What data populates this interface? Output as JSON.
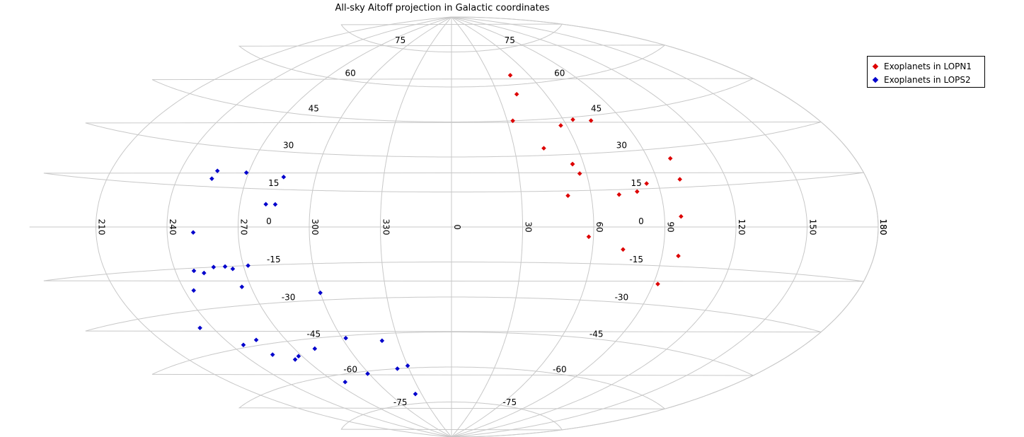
{
  "chart_data": {
    "type": "scatter",
    "projection": "aitoff",
    "coordinate_system": "galactic",
    "title": "All-sky Aitoff projection in Galactic coordinates",
    "grid": true,
    "legend_position": "top-right",
    "longitude_ticks": [
      180,
      210,
      240,
      270,
      300,
      330,
      0,
      30,
      60,
      90,
      120,
      150,
      180
    ],
    "latitude_labels": [
      75,
      60,
      45,
      30,
      15,
      0,
      -15,
      -30,
      -45,
      -60,
      -75
    ],
    "series": [
      {
        "name": "Exoplanets in LOPN1",
        "color": "#dd0000",
        "points": [
          [
            46,
            64
          ],
          [
            42,
            56
          ],
          [
            33,
            45
          ],
          [
            65,
            44
          ],
          [
            57,
            42
          ],
          [
            74,
            43
          ],
          [
            44,
            33
          ],
          [
            55,
            26
          ],
          [
            55,
            26
          ],
          [
            57,
            22
          ],
          [
            100,
            26
          ],
          [
            100,
            18
          ],
          [
            85,
            17
          ],
          [
            80,
            14
          ],
          [
            72,
            13
          ],
          [
            50,
            13
          ],
          [
            97,
            4
          ],
          [
            58,
            -4
          ],
          [
            73,
            -9
          ],
          [
            97,
            -11
          ],
          [
            92,
            -22
          ]
        ]
      },
      {
        "name": "Exoplanets in LOPS2",
        "color": "#0000cc",
        "points": [
          [
            256,
            21
          ],
          [
            269,
            21
          ],
          [
            286,
            20
          ],
          [
            255,
            18
          ],
          [
            281,
            9
          ],
          [
            285,
            9
          ],
          [
            251,
            -2
          ],
          [
            248,
            -16
          ],
          [
            252,
            -17
          ],
          [
            257,
            -15
          ],
          [
            262,
            -15
          ],
          [
            265,
            -16
          ],
          [
            272,
            -15
          ],
          [
            244,
            -23
          ],
          [
            266,
            -23
          ],
          [
            300,
            -27
          ],
          [
            234,
            -36
          ],
          [
            246,
            -44
          ],
          [
            255,
            -43
          ],
          [
            255,
            -49
          ],
          [
            264,
            -52
          ],
          [
            268,
            -51
          ],
          [
            281,
            -49
          ],
          [
            302,
            -46
          ],
          [
            321,
            -48
          ],
          [
            330,
            -59
          ],
          [
            322,
            -60
          ],
          [
            299,
            -61
          ],
          [
            277,
            -63
          ],
          [
            324,
            -71
          ]
        ]
      }
    ]
  }
}
